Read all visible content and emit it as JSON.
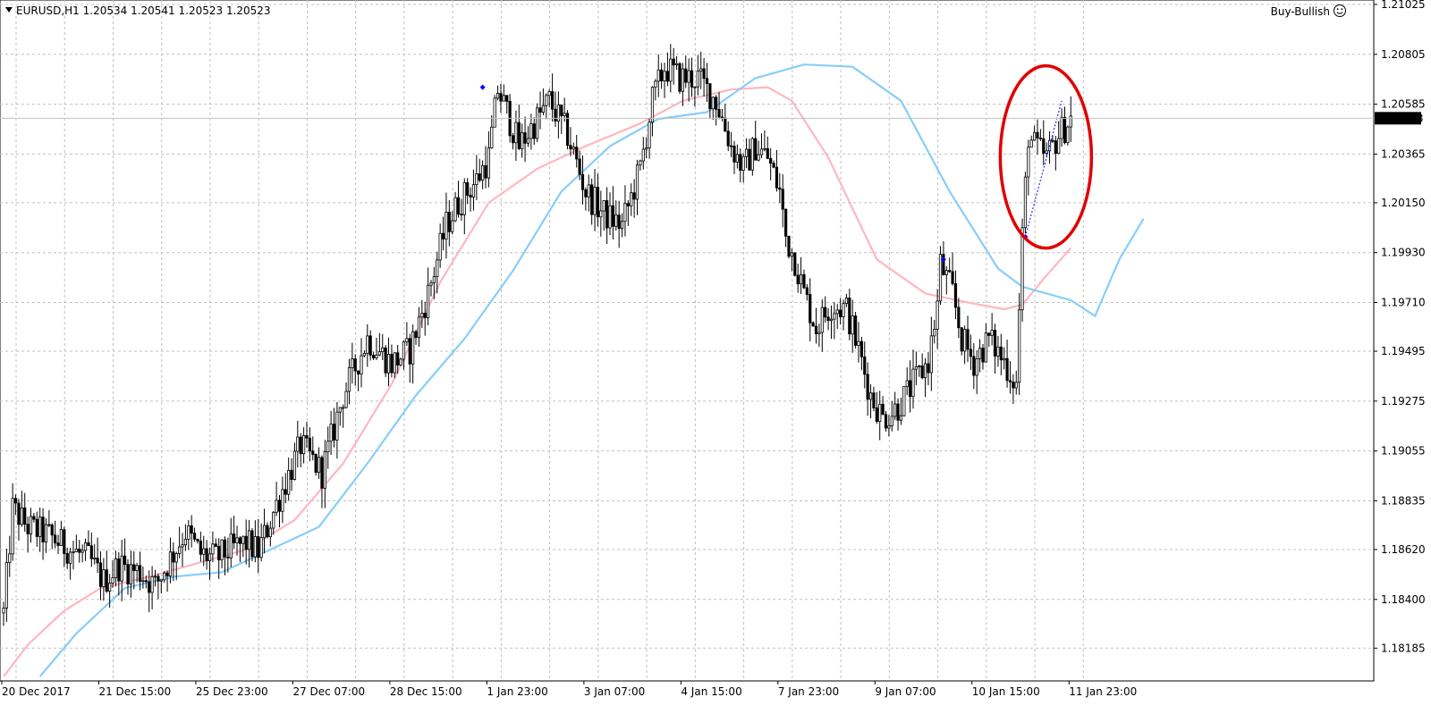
{
  "header": {
    "symbol_line": "EURUSD,H1  1.20534 1.20541 1.20523 1.20523",
    "collapse_icon": "triangle-down-icon"
  },
  "indicator": {
    "label": "Buy-Bullish",
    "icon": "smiley-icon"
  },
  "colors": {
    "candle": "#000000",
    "grid": "#c0c0c0",
    "ma_fast": "#ffb6c1",
    "ma_slow": "#87cefa",
    "price_line": "#c0c0c0",
    "price_label_bg": "#000000",
    "price_label_fg": "#ffffff",
    "highlight_circle": "#e00000",
    "signal_line": "#0000ff"
  },
  "chart_data": {
    "type": "candlestick",
    "symbol": "EURUSD",
    "timeframe": "H1",
    "current_price": "1.20523",
    "ylim": [
      1.1806,
      1.21025
    ],
    "y_ticks": [
      "1.21025",
      "1.20805",
      "1.20585",
      "1.20365",
      "1.20150",
      "1.19930",
      "1.19710",
      "1.19495",
      "1.19275",
      "1.19055",
      "1.18835",
      "1.18620",
      "1.18400",
      "1.18185"
    ],
    "x_ticks": [
      "20 Dec 2017",
      "21 Dec 15:00",
      "25 Dec 23:00",
      "27 Dec 07:00",
      "28 Dec 15:00",
      "1 Jan 23:00",
      "3 Jan 07:00",
      "4 Jan 15:00",
      "7 Jan 23:00",
      "9 Jan 07:00",
      "10 Jan 15:00",
      "11 Jan 23:00"
    ],
    "x_tick_bar_index": [
      0,
      32,
      64,
      96,
      128,
      160,
      192,
      224,
      256,
      288,
      320,
      352
    ],
    "bar_count": 352,
    "close_anchors": [
      [
        0,
        1.1834
      ],
      [
        3,
        1.188
      ],
      [
        8,
        1.1872
      ],
      [
        15,
        1.1868
      ],
      [
        22,
        1.1862
      ],
      [
        28,
        1.1858
      ],
      [
        33,
        1.1848
      ],
      [
        38,
        1.1855
      ],
      [
        45,
        1.1852
      ],
      [
        50,
        1.1846
      ],
      [
        55,
        1.1858
      ],
      [
        60,
        1.187
      ],
      [
        65,
        1.186
      ],
      [
        70,
        1.1858
      ],
      [
        75,
        1.1862
      ],
      [
        80,
        1.1865
      ],
      [
        84,
        1.1861
      ],
      [
        90,
        1.1882
      ],
      [
        98,
        1.1908
      ],
      [
        105,
        1.1896
      ],
      [
        112,
        1.193
      ],
      [
        120,
        1.1955
      ],
      [
        128,
        1.1944
      ],
      [
        134,
        1.195
      ],
      [
        140,
        1.1975
      ],
      [
        146,
        1.2005
      ],
      [
        150,
        1.2015
      ],
      [
        156,
        1.2025
      ],
      [
        160,
        1.2035
      ],
      [
        163,
        1.2065
      ],
      [
        166,
        1.2055
      ],
      [
        170,
        1.204
      ],
      [
        175,
        1.205
      ],
      [
        180,
        1.206
      ],
      [
        186,
        1.2045
      ],
      [
        192,
        1.202
      ],
      [
        198,
        1.201
      ],
      [
        204,
        1.2005
      ],
      [
        210,
        1.203
      ],
      [
        214,
        1.206
      ],
      [
        218,
        1.2075
      ],
      [
        223,
        1.207
      ],
      [
        229,
        1.207
      ],
      [
        235,
        1.206
      ],
      [
        240,
        1.204
      ],
      [
        244,
        1.203
      ],
      [
        248,
        1.204
      ],
      [
        252,
        1.2035
      ],
      [
        256,
        1.202
      ],
      [
        258,
        1.2
      ],
      [
        261,
        1.199
      ],
      [
        264,
        1.1975
      ],
      [
        268,
        1.196
      ],
      [
        273,
        1.197
      ],
      [
        278,
        1.1968
      ],
      [
        282,
        1.195
      ],
      [
        286,
        1.193
      ],
      [
        290,
        1.192
      ],
      [
        295,
        1.1925
      ],
      [
        300,
        1.1935
      ],
      [
        305,
        1.1945
      ],
      [
        308,
        1.197
      ],
      [
        309,
        1.1988
      ],
      [
        313,
        1.1975
      ],
      [
        316,
        1.1955
      ],
      [
        320,
        1.1945
      ],
      [
        325,
        1.1955
      ],
      [
        330,
        1.1945
      ],
      [
        334,
        1.1935
      ],
      [
        336,
        1.2
      ],
      [
        338,
        1.2045
      ],
      [
        340,
        1.204
      ],
      [
        344,
        1.2035
      ],
      [
        348,
        1.2045
      ],
      [
        352,
        1.2052
      ]
    ],
    "series": [
      {
        "role": "ma_fast",
        "points": [
          [
            0,
            1.1806
          ],
          [
            8,
            1.182
          ],
          [
            20,
            1.1835
          ],
          [
            32,
            1.1845
          ],
          [
            48,
            1.185
          ],
          [
            64,
            1.1856
          ],
          [
            80,
            1.1862
          ],
          [
            96,
            1.1875
          ],
          [
            112,
            1.19
          ],
          [
            128,
            1.1935
          ],
          [
            144,
            1.198
          ],
          [
            160,
            1.2015
          ],
          [
            176,
            1.203
          ],
          [
            192,
            1.204
          ],
          [
            210,
            1.205
          ],
          [
            224,
            1.206
          ],
          [
            240,
            1.2065
          ],
          [
            252,
            1.2066
          ],
          [
            260,
            1.206
          ],
          [
            272,
            1.2035
          ],
          [
            288,
            1.199
          ],
          [
            304,
            1.1975
          ],
          [
            318,
            1.1971
          ],
          [
            330,
            1.1968
          ],
          [
            336,
            1.197
          ],
          [
            344,
            1.1983
          ],
          [
            352,
            1.1995
          ]
        ]
      },
      {
        "role": "ma_slow",
        "points": [
          [
            12,
            1.1806
          ],
          [
            24,
            1.1825
          ],
          [
            40,
            1.1845
          ],
          [
            56,
            1.185
          ],
          [
            72,
            1.1852
          ],
          [
            88,
            1.1862
          ],
          [
            104,
            1.1872
          ],
          [
            120,
            1.19
          ],
          [
            136,
            1.193
          ],
          [
            152,
            1.1955
          ],
          [
            168,
            1.1985
          ],
          [
            184,
            1.202
          ],
          [
            200,
            1.204
          ],
          [
            216,
            1.2052
          ],
          [
            232,
            1.2055
          ],
          [
            248,
            1.207
          ],
          [
            264,
            1.2076
          ],
          [
            280,
            1.2075
          ],
          [
            296,
            1.206
          ],
          [
            312,
            1.202
          ],
          [
            328,
            1.1986
          ],
          [
            336,
            1.1978
          ],
          [
            344,
            1.1975
          ],
          [
            352,
            1.1972
          ],
          [
            360,
            1.1965
          ],
          [
            368,
            1.199
          ],
          [
            376,
            1.2008
          ]
        ]
      }
    ],
    "signals": [
      {
        "bar": 158,
        "price": 1.2066,
        "kind": "buy"
      },
      {
        "bar": 310,
        "price": 1.199,
        "kind": "buy"
      },
      {
        "bar": 337,
        "price": 1.2,
        "kind": "buy"
      }
    ],
    "highlight": {
      "bar_center": 342,
      "price_center": 1.2036
    }
  }
}
